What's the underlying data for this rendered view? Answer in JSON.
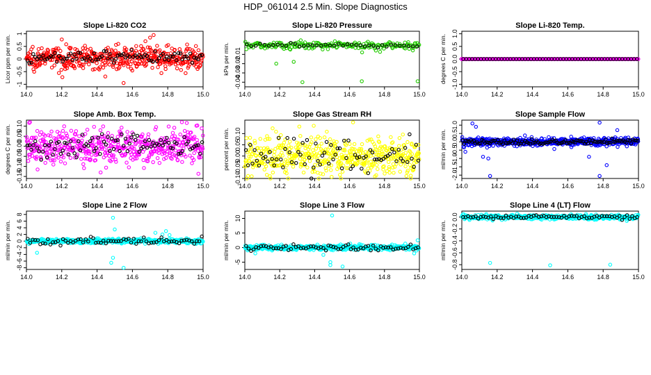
{
  "figure": {
    "title": "HDP_061014  2.5 Min. Slope Diagnostics",
    "colors": {
      "overlay": "#000000",
      "axis": "#000000",
      "background": "#ffffff"
    }
  },
  "chart_data": [
    {
      "type": "scatter",
      "title": "Slope Li-820 CO2",
      "xlabel": "",
      "ylabel": "Licor ppm per min.",
      "xlim": [
        14.0,
        15.0
      ],
      "ylim": [
        -1.1,
        1.1
      ],
      "xticks": [
        14.0,
        14.2,
        14.4,
        14.6,
        14.8,
        15.0
      ],
      "yticks": [
        -1,
        -0.5,
        0,
        0.5,
        1
      ],
      "ytick_labels": [
        "-1",
        "-0.5",
        "0",
        "0.5",
        "1"
      ],
      "color": "#ff0000",
      "n_points": 480,
      "n_overlay": 90,
      "center": 0.05,
      "spread": 0.22,
      "overlay_spread": 0.12,
      "outliers": [
        {
          "x": 14.72,
          "y": 0.95
        },
        {
          "x": 14.7,
          "y": 0.85
        },
        {
          "x": 14.55,
          "y": -0.95
        },
        {
          "x": 14.52,
          "y": 0.6
        }
      ]
    },
    {
      "type": "scatter",
      "title": "Slope Li-820 Pressure",
      "xlabel": "",
      "ylabel": "kPa per min.",
      "xlim": [
        14.0,
        15.0
      ],
      "ylim": [
        -0.045,
        0.015
      ],
      "xticks": [
        14.0,
        14.2,
        14.4,
        14.6,
        14.8,
        15.0
      ],
      "yticks": [
        -0.04,
        -0.03,
        -0.02,
        -0.01
      ],
      "ytick_labels": [
        "-0.04",
        "-0.03",
        "-0.02",
        "-0.01"
      ],
      "color": "#22cc00",
      "n_points": 220,
      "n_overlay": 40,
      "center": 0.0,
      "spread": 0.0022,
      "overlay_spread": 0.0008,
      "outliers": [
        {
          "x": 14.33,
          "y": -0.04
        },
        {
          "x": 14.67,
          "y": -0.039
        },
        {
          "x": 14.99,
          "y": -0.039
        },
        {
          "x": 14.28,
          "y": -0.018
        },
        {
          "x": 14.18,
          "y": -0.02
        }
      ]
    },
    {
      "type": "scatter",
      "title": "Slope Li-820 Temp.",
      "xlabel": "",
      "ylabel": "degrees C per min.",
      "xlim": [
        14.0,
        15.0
      ],
      "ylim": [
        -1.1,
        1.1
      ],
      "xticks": [
        14.0,
        14.2,
        14.4,
        14.6,
        14.8,
        15.0
      ],
      "yticks": [
        -1,
        -0.5,
        0,
        0.5,
        1
      ],
      "ytick_labels": [
        "-1.0",
        "-0.5",
        "0.0",
        "0.5",
        "1.0"
      ],
      "color": "#ff00ff",
      "n_points": 300,
      "n_overlay": 60,
      "center": 0.0,
      "spread": 0.0,
      "overlay_spread": 0.0,
      "outliers": []
    },
    {
      "type": "scatter",
      "title": "Slope Amb. Box Temp.",
      "xlabel": "",
      "ylabel": "degrees C per min.",
      "xlim": [
        14.0,
        15.0
      ],
      "ylim": [
        -0.16,
        0.13
      ],
      "xticks": [
        14.0,
        14.2,
        14.4,
        14.6,
        14.8,
        15.0
      ],
      "yticks": [
        -0.15,
        -0.1,
        -0.05,
        0,
        0.05,
        0.1
      ],
      "ytick_labels": [
        "-0.15",
        "-0.10",
        "-0.05",
        "0.00",
        "0.05",
        "0.10"
      ],
      "color": "#ff00ff",
      "n_points": 500,
      "n_overlay": 90,
      "center": 0.0,
      "spread": 0.045,
      "overlay_spread": 0.03,
      "outliers": [
        {
          "x": 14.02,
          "y": 0.12
        },
        {
          "x": 14.42,
          "y": -0.13
        },
        {
          "x": 14.88,
          "y": 0.12
        }
      ]
    },
    {
      "type": "scatter",
      "title": "Slope Gas Stream RH",
      "xlabel": "",
      "ylabel": "percent per min.",
      "xlim": [
        14.0,
        15.0
      ],
      "ylim": [
        -0.1,
        0.16
      ],
      "xticks": [
        14.0,
        14.2,
        14.4,
        14.6,
        14.8,
        15.0
      ],
      "yticks": [
        -0.1,
        -0.05,
        0,
        0.05,
        0.1
      ],
      "ytick_labels": [
        "-0.10",
        "-0.05",
        "0.00",
        "0.05",
        "0.10"
      ],
      "color": "#ffff00",
      "n_points": 520,
      "n_overlay": 80,
      "center": 0.0,
      "spread": 0.04,
      "overlay_spread": 0.04,
      "outliers": [
        {
          "x": 14.62,
          "y": 0.15
        },
        {
          "x": 14.95,
          "y": -0.1
        },
        {
          "x": 14.56,
          "y": -0.07
        }
      ]
    },
    {
      "type": "scatter",
      "title": "Slope Sample Flow",
      "xlabel": "",
      "ylabel": "ml/min per min.",
      "xlim": [
        14.0,
        15.0
      ],
      "ylim": [
        -2.2,
        1.3
      ],
      "xticks": [
        14.0,
        14.2,
        14.4,
        14.6,
        14.8,
        15.0
      ],
      "yticks": [
        -2,
        -1.5,
        -1,
        -0.5,
        0,
        0.5,
        1
      ],
      "ytick_labels": [
        "-2.0",
        "-1.5",
        "-1.0",
        "-0.5",
        "0.0",
        "0.5",
        "1.0"
      ],
      "color": "#0000ff",
      "n_points": 520,
      "n_overlay": 110,
      "center": 0.0,
      "spread": 0.12,
      "overlay_spread": 0.08,
      "outliers": [
        {
          "x": 14.06,
          "y": 1.1
        },
        {
          "x": 14.08,
          "y": 0.9
        },
        {
          "x": 14.16,
          "y": -2.05
        },
        {
          "x": 14.15,
          "y": -1.0
        },
        {
          "x": 14.12,
          "y": -0.9
        },
        {
          "x": 14.78,
          "y": -2.05
        },
        {
          "x": 14.78,
          "y": 1.15
        },
        {
          "x": 14.82,
          "y": -1.4
        },
        {
          "x": 14.72,
          "y": -0.9
        },
        {
          "x": 14.88,
          "y": 0.7
        },
        {
          "x": 14.02,
          "y": -0.6
        }
      ]
    },
    {
      "type": "scatter",
      "title": "Slope Line 2 Flow",
      "xlabel": "",
      "ylabel": "ml/min per min.",
      "xlim": [
        14.0,
        15.0
      ],
      "ylim": [
        -8.5,
        9.0
      ],
      "xticks": [
        14.0,
        14.2,
        14.4,
        14.6,
        14.8,
        15.0
      ],
      "yticks": [
        -8,
        -6,
        -4,
        -2,
        0,
        2,
        4,
        6,
        8
      ],
      "ytick_labels": [
        "-8",
        "-6",
        "-4",
        "-2",
        "0",
        "2",
        "4",
        "6",
        "8"
      ],
      "color": "#00ffff",
      "n_points": 420,
      "n_overlay": 70,
      "center": 0.0,
      "spread": 0.35,
      "overlay_spread": 0.5,
      "outliers": [
        {
          "x": 14.06,
          "y": -3.5
        },
        {
          "x": 14.49,
          "y": 7.0
        },
        {
          "x": 14.49,
          "y": -5.0
        },
        {
          "x": 14.48,
          "y": -6.5
        },
        {
          "x": 14.5,
          "y": 3.5
        },
        {
          "x": 14.55,
          "y": -8.0
        },
        {
          "x": 14.79,
          "y": 3.0
        },
        {
          "x": 14.77,
          "y": 2.0
        },
        {
          "x": 14.73,
          "y": 2.5
        },
        {
          "x": 14.81,
          "y": 1.8
        }
      ]
    },
    {
      "type": "scatter",
      "title": "Slope Line 3 Flow",
      "xlabel": "",
      "ylabel": "ml/min per min.",
      "xlim": [
        14.0,
        15.0
      ],
      "ylim": [
        -7.5,
        12.5
      ],
      "xticks": [
        14.0,
        14.2,
        14.4,
        14.6,
        14.8,
        15.0
      ],
      "yticks": [
        -5,
        0,
        5,
        10
      ],
      "ytick_labels": [
        "-5",
        "0",
        "5",
        "10"
      ],
      "color": "#00ffff",
      "n_points": 420,
      "n_overlay": 70,
      "center": 0.0,
      "spread": 0.45,
      "overlay_spread": 0.5,
      "outliers": [
        {
          "x": 14.5,
          "y": 11.0
        },
        {
          "x": 14.49,
          "y": -5.0
        },
        {
          "x": 14.49,
          "y": -6.0
        },
        {
          "x": 14.56,
          "y": -6.5
        },
        {
          "x": 14.45,
          "y": -2.5
        },
        {
          "x": 14.06,
          "y": -2.0
        },
        {
          "x": 14.99,
          "y": 2.5
        },
        {
          "x": 14.97,
          "y": -2.0
        }
      ]
    },
    {
      "type": "scatter",
      "title": "Slope Line 4 (LT) Flow",
      "xlabel": "",
      "ylabel": "ml/min per min.",
      "xlim": [
        14.0,
        15.0
      ],
      "ylim": [
        -0.88,
        0.1
      ],
      "xticks": [
        14.0,
        14.2,
        14.4,
        14.6,
        14.8,
        15.0
      ],
      "yticks": [
        -0.8,
        -0.6,
        -0.4,
        -0.2,
        0
      ],
      "ytick_labels": [
        "-0.8",
        "-0.6",
        "-0.4",
        "-0.2",
        "0.0"
      ],
      "color": "#00ffff",
      "n_points": 420,
      "n_overlay": 70,
      "center": 0.0,
      "spread": 0.02,
      "overlay_spread": 0.015,
      "outliers": [
        {
          "x": 14.16,
          "y": -0.77
        },
        {
          "x": 14.5,
          "y": -0.81
        },
        {
          "x": 14.84,
          "y": -0.8
        }
      ]
    }
  ]
}
